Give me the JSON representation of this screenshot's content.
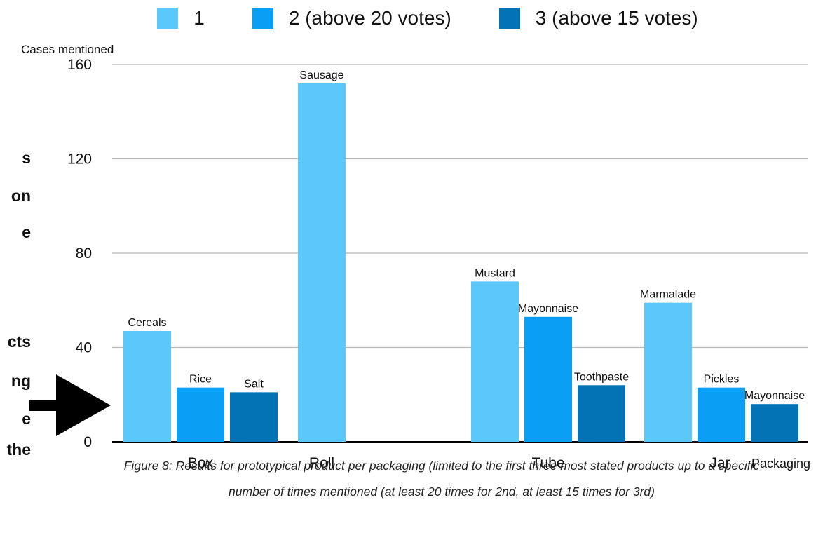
{
  "chart_data": {
    "type": "bar",
    "categories": [
      "Box",
      "Roll",
      "Tube",
      "Jar"
    ],
    "series": [
      {
        "name": "1",
        "color": "#5ac8fa",
        "values": [
          47,
          152,
          68,
          59
        ],
        "labels": [
          "Cereals",
          "Sausage",
          "Mustard",
          "Marmalade"
        ]
      },
      {
        "name": "2 (above 20 votes)",
        "color": "#0a9ff5",
        "values": [
          23,
          null,
          53,
          23
        ],
        "labels": [
          "Rice",
          "",
          "Mayonnaise",
          "Pickles"
        ]
      },
      {
        "name": "3 (above 15 votes)",
        "color": "#0473b6",
        "values": [
          21,
          null,
          24,
          16
        ],
        "labels": [
          "Salt",
          "",
          "Toothpaste",
          "Mayonnaise"
        ]
      }
    ],
    "ylabel": "Cases mentioned",
    "xlabel": "Packaging",
    "ylim": [
      0,
      160
    ],
    "yticks": [
      0,
      40,
      80,
      120,
      160
    ],
    "grid": true,
    "legend_position": "top"
  },
  "caption": "Figure 8: Results for prototypical product per packaging (limited to the first three most stated products up to a specific number of times mentioned (at least 20 times for 2nd, at least 15 times for 3rd)",
  "margin_text": [
    "s",
    "on",
    "e",
    "cts",
    "ng",
    "e",
    "the"
  ],
  "arrow": {
    "icon": "arrow-right-icon",
    "color": "#000000"
  }
}
